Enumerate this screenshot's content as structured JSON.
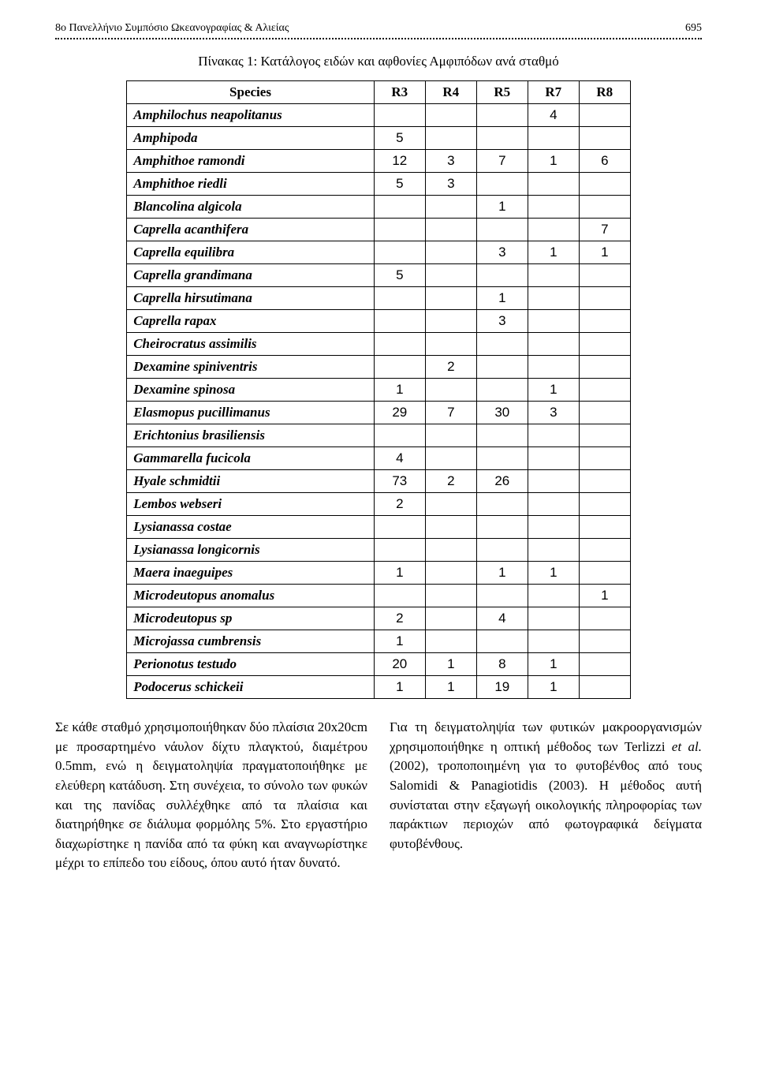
{
  "header": {
    "title": "8ο Πανελλήνιο Συμπόσιο Ωκεανογραφίας & Αλιείας",
    "pagenum": "695"
  },
  "table": {
    "caption": "Πίνακας 1: Κατάλογος ειδών και αφθονίες Αμφιπόδων ανά σταθμό",
    "columns": [
      "Species",
      "R3",
      "R4",
      "R5",
      "R7",
      "R8"
    ],
    "rows": [
      {
        "sp": "Amphilochus neapolitanus",
        "v": [
          "",
          "",
          "",
          "4",
          ""
        ]
      },
      {
        "sp": "Amphipoda",
        "v": [
          "5",
          "",
          "",
          "",
          ""
        ]
      },
      {
        "sp": "Amphithoe ramondi",
        "v": [
          "12",
          "3",
          "7",
          "1",
          "6"
        ]
      },
      {
        "sp": "Amphithoe riedli",
        "v": [
          "5",
          "3",
          "",
          "",
          ""
        ]
      },
      {
        "sp": "Blancolina algicola",
        "v": [
          "",
          "",
          "1",
          "",
          ""
        ]
      },
      {
        "sp": "Caprella acanthifera",
        "v": [
          "",
          "",
          "",
          "",
          "7"
        ]
      },
      {
        "sp": "Caprella equilibra",
        "v": [
          "",
          "",
          "3",
          "1",
          "1"
        ]
      },
      {
        "sp": "Caprella grandimana",
        "v": [
          "5",
          "",
          "",
          "",
          ""
        ]
      },
      {
        "sp": "Caprella hirsutimana",
        "v": [
          "",
          "",
          "1",
          "",
          ""
        ]
      },
      {
        "sp": "Caprella rapax",
        "v": [
          "",
          "",
          "3",
          "",
          ""
        ]
      },
      {
        "sp": "Cheirocratus assimilis",
        "v": [
          "",
          "",
          "",
          "",
          ""
        ]
      },
      {
        "sp": "Dexamine spiniventris",
        "v": [
          "",
          "2",
          "",
          "",
          ""
        ]
      },
      {
        "sp": "Dexamine spinosa",
        "v": [
          "1",
          "",
          "",
          "1",
          ""
        ]
      },
      {
        "sp": "Elasmopus pucillimanus",
        "v": [
          "29",
          "7",
          "30",
          "3",
          ""
        ]
      },
      {
        "sp": "Erichtonius brasiliensis",
        "v": [
          "",
          "",
          "",
          "",
          ""
        ]
      },
      {
        "sp": "Gammarella fucicola",
        "v": [
          "4",
          "",
          "",
          "",
          ""
        ]
      },
      {
        "sp": "Hyale schmidtii",
        "v": [
          "73",
          "2",
          "26",
          "",
          ""
        ]
      },
      {
        "sp": "Lembos webseri",
        "v": [
          "2",
          "",
          "",
          "",
          ""
        ]
      },
      {
        "sp": "Lysianassa costae",
        "v": [
          "",
          "",
          "",
          "",
          ""
        ]
      },
      {
        "sp": "Lysianassa longicornis",
        "v": [
          "",
          "",
          "",
          "",
          ""
        ]
      },
      {
        "sp": "Maera inaeguipes",
        "v": [
          "1",
          "",
          "1",
          "1",
          ""
        ]
      },
      {
        "sp": "Microdeutopus anomalus",
        "v": [
          "",
          "",
          "",
          "",
          "1"
        ]
      },
      {
        "sp": "Microdeutopus sp",
        "v": [
          "2",
          "",
          "4",
          "",
          ""
        ]
      },
      {
        "sp": "Microjassa cumbrensis",
        "v": [
          "1",
          "",
          "",
          "",
          ""
        ]
      },
      {
        "sp": "Perionotus testudo",
        "v": [
          "20",
          "1",
          "8",
          "1",
          ""
        ]
      },
      {
        "sp": "Podocerus schickeii",
        "v": [
          "1",
          "1",
          "19",
          "1",
          ""
        ]
      }
    ]
  },
  "body": {
    "left": "Σε κάθε σταθμό χρησιμοποιήθηκαν δύο πλαίσια 20x20cm με προσαρτημένο νάυλον δίχτυ πλαγκτού, διαμέτρου 0.5mm, ενώ η δειγματοληψία πραγματοποιήθηκε με ελεύθερη κατάδυση. Στη συνέχεια, το σύνολο των φυκών και της πανίδας συλλέχθηκε από τα πλαίσια και διατηρήθηκε σε διάλυμα φορμόλης 5%. Στο εργαστήριο διαχωρίστηκε η πανίδα από τα φύκη και αναγνωρίστηκε μέχρι το επίπεδο του είδους, όπου αυτό ήταν δυνατό.",
    "right_a": "Για τη δειγματοληψία των φυτικών μακροοργανισμών χρησιμοποιήθηκε η οπτική μέθοδος των Terlizzi ",
    "right_ital": "et al.",
    "right_b": " (2002), τροποποιημένη για το φυτοβένθος από τους Salomidi & Panagiotidis (2003). Η μέθοδος αυτή συνίσταται στην εξαγωγή οικολογικής πληροφορίας των παράκτιων περιοχών από φωτογραφικά δείγματα φυτοβένθους."
  }
}
